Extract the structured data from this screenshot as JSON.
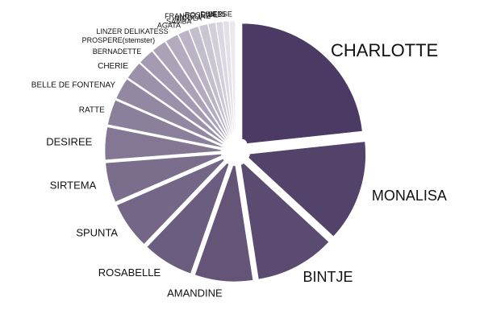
{
  "chart_data": {
    "type": "pie",
    "exploded": true,
    "title": "",
    "slices": [
      {
        "label": "CHARLOTTE",
        "value": 24.0
      },
      {
        "label": "MONALISA",
        "value": 14.0
      },
      {
        "label": "BINTJE",
        "value": 11.0
      },
      {
        "label": "AMANDINE",
        "value": 8.0
      },
      {
        "label": "ROSABELLE",
        "value": 7.0
      },
      {
        "label": "SPUNTA",
        "value": 6.5
      },
      {
        "label": "SIRTEMA",
        "value": 5.5
      },
      {
        "label": "DESIREE",
        "value": 4.5
      },
      {
        "label": "RATTE",
        "value": 3.5
      },
      {
        "label": "BELLE DE FONTENAY",
        "value": 3.0
      },
      {
        "label": "CHERIE",
        "value": 2.5
      },
      {
        "label": "BERNADETTE",
        "value": 2.2
      },
      {
        "label": "PROSPERE(stemster)",
        "value": 2.0
      },
      {
        "label": "LINZER DELIKATESS",
        "value": 1.8
      },
      {
        "label": "AGATA",
        "value": 1.5
      },
      {
        "label": "SAMBA",
        "value": 1.3
      },
      {
        "label": "NICOLA",
        "value": 1.2
      },
      {
        "label": "FRANCELINE",
        "value": 1.0
      },
      {
        "label": "ROSEVAL",
        "value": 0.9
      },
      {
        "label": "BF15",
        "value": 0.8
      },
      {
        "label": "DIVERSE",
        "value": 0.8
      }
    ],
    "colors": {
      "dark": "#4b3a63",
      "light": "#ece8f0"
    }
  }
}
